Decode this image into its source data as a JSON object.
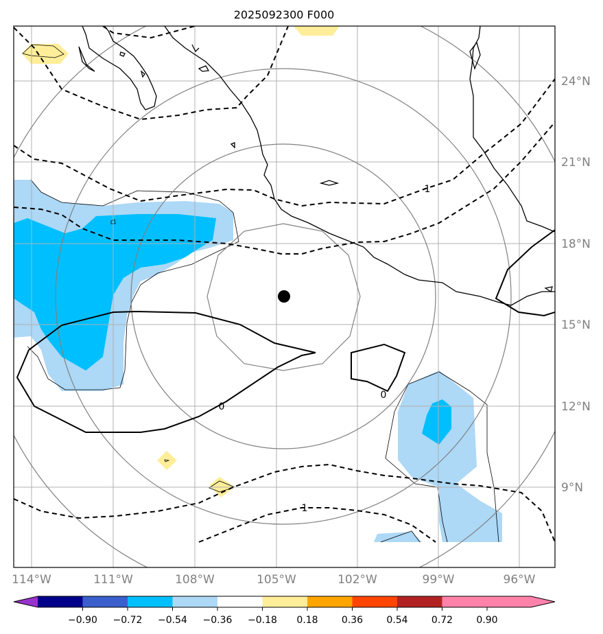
{
  "title": "2025092300 F000",
  "map": {
    "lon_labels": [
      "114°W",
      "111°W",
      "108°W",
      "105°W",
      "102°W",
      "99°W",
      "96°W"
    ],
    "lat_labels": [
      "24°N",
      "21°N",
      "18°N",
      "15°N",
      "12°N",
      "9°N"
    ],
    "center_marker": {
      "lon": -104.8,
      "lat": 16.0
    },
    "contour_labels": [
      "1",
      "0",
      "0",
      "1"
    ],
    "fill_colors": {
      "neg_036_018": "#add8f6",
      "neg_054_036": "#00bfff",
      "pos_018_036": "#ffee99"
    }
  },
  "colorbar": {
    "ticks": [
      "−0.90",
      "−0.72",
      "−0.54",
      "−0.36",
      "−0.18",
      "0.18",
      "0.36",
      "0.54",
      "0.72",
      "0.90"
    ],
    "colors": [
      "#9932cc",
      "#00008b",
      "#3a5fcd",
      "#00bfff",
      "#add8f6",
      "#ffffff",
      "#ffee99",
      "#ffa500",
      "#ff4500",
      "#b22222",
      "#ff82ab"
    ]
  }
}
